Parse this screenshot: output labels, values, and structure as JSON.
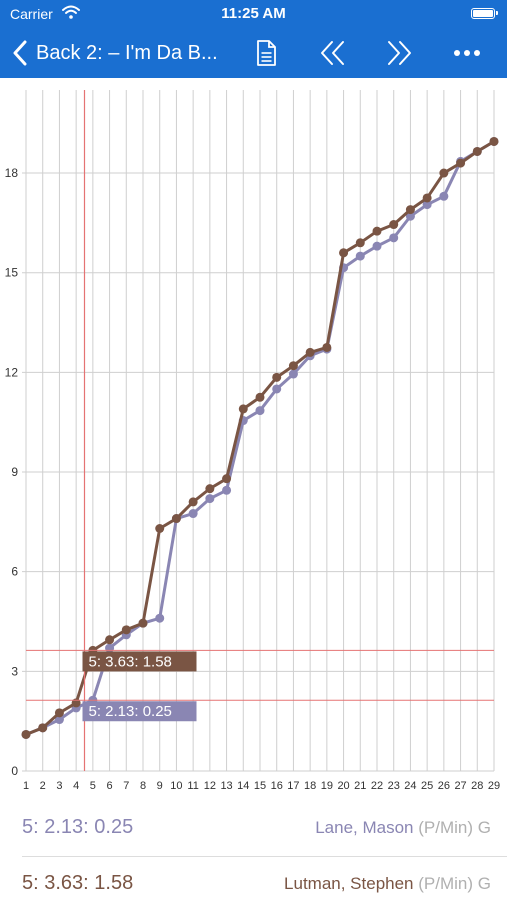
{
  "status_bar": {
    "carrier": "Carrier",
    "time": "11:25 AM"
  },
  "nav": {
    "back_label": "Back",
    "title": "2: – I'm Da B..."
  },
  "colors": {
    "nav_bg": "#1a6fd1",
    "series_a": "#8a86b3",
    "series_b": "#7a5544",
    "crosshair": "#e57373",
    "grid": "#cfcfcf"
  },
  "icons": {
    "back": "chevron-left-icon",
    "document": "document-icon",
    "previous": "double-chevron-left-icon",
    "next": "double-chevron-right-icon",
    "more": "more-icon"
  },
  "chart_data": {
    "type": "line",
    "x": [
      1,
      2,
      3,
      4,
      5,
      6,
      7,
      8,
      9,
      10,
      11,
      12,
      13,
      14,
      15,
      16,
      17,
      18,
      19,
      20,
      21,
      22,
      23,
      24,
      25,
      26,
      27,
      28,
      29
    ],
    "ylim": [
      0,
      20.5
    ],
    "xlim": [
      1,
      29
    ],
    "yticks": [
      0,
      3,
      6,
      9,
      12,
      15,
      18
    ],
    "xticks": [
      1,
      2,
      3,
      4,
      5,
      6,
      7,
      8,
      9,
      10,
      11,
      12,
      13,
      14,
      15,
      16,
      17,
      18,
      19,
      20,
      21,
      22,
      23,
      24,
      25,
      26,
      27,
      28,
      29
    ],
    "grid": true,
    "series": [
      {
        "name": "Lane, Mason",
        "color": "#8a86b3",
        "values": [
          1.1,
          1.3,
          1.55,
          1.9,
          2.13,
          3.7,
          4.1,
          4.45,
          4.6,
          7.6,
          7.75,
          8.2,
          8.45,
          10.55,
          10.85,
          11.5,
          11.95,
          12.5,
          12.7,
          15.15,
          15.5,
          15.8,
          16.05,
          16.7,
          17.05,
          17.3,
          18.35,
          18.65,
          18.95
        ]
      },
      {
        "name": "Lutman, Stephen",
        "color": "#7a5544",
        "values": [
          1.1,
          1.3,
          1.75,
          2.05,
          3.63,
          3.95,
          4.25,
          4.45,
          7.3,
          7.6,
          8.1,
          8.5,
          8.8,
          10.9,
          11.25,
          11.85,
          12.2,
          12.6,
          12.75,
          15.6,
          15.9,
          16.25,
          16.45,
          16.9,
          17.25,
          18.0,
          18.3,
          18.65,
          18.95
        ]
      }
    ],
    "crosshair": {
      "x": 4.5
    },
    "annotations": [
      {
        "text": "5: 3.63: 1.58",
        "y": 3.63,
        "color": "#7a5544"
      },
      {
        "text": "5: 2.13: 0.25",
        "y": 2.13,
        "color": "#8a86b3"
      }
    ]
  },
  "legend": [
    {
      "value": "5: 2.13: 0.25",
      "name": "Lane, Mason",
      "unit": "(P/Min)",
      "suffix": "G",
      "color": "#8a86b3"
    },
    {
      "value": "5: 3.63: 1.58",
      "name": "Lutman, Stephen",
      "unit": "(P/Min)",
      "suffix": "G",
      "color": "#7a5544"
    }
  ]
}
